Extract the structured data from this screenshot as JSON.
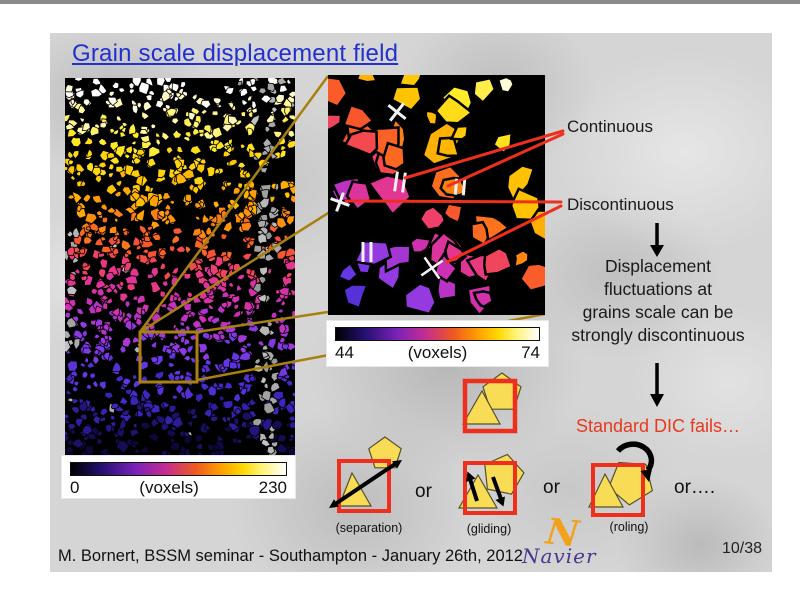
{
  "slide": {
    "title": "Grain scale displacement field",
    "footer": "M. Bornert, BSSM seminar - Southampton - January 26th, 2012",
    "page_number": "10/38",
    "logo": "Navier"
  },
  "annotations": {
    "continuous": "Continuous",
    "discontinuous": "Discontinuous",
    "conclusion_lines": [
      "Displacement",
      "fluctuations at",
      "grains scale can be",
      "strongly discontinuous"
    ],
    "fails": "Standard DIC fails…"
  },
  "colorbar_full": {
    "min": "0",
    "unit": "(voxels)",
    "max": "230"
  },
  "colorbar_zoom": {
    "min": "44",
    "unit": "(voxels)",
    "max": "74"
  },
  "mechanisms": {
    "or_1": "or",
    "or_2": "or",
    "or_3": "or….",
    "separation_label": "(separation)",
    "gliding_label": "(gliding)",
    "roling_label": "(roling)"
  },
  "colors": {
    "title_blue": "#2230cf",
    "annotation_red": "#ee2f1d",
    "fails_red": "#e8391f",
    "connector_gold": "#a8800f",
    "shape_yellow": "#f8dc55",
    "top_bar_gray": "#8a8a8a"
  }
}
